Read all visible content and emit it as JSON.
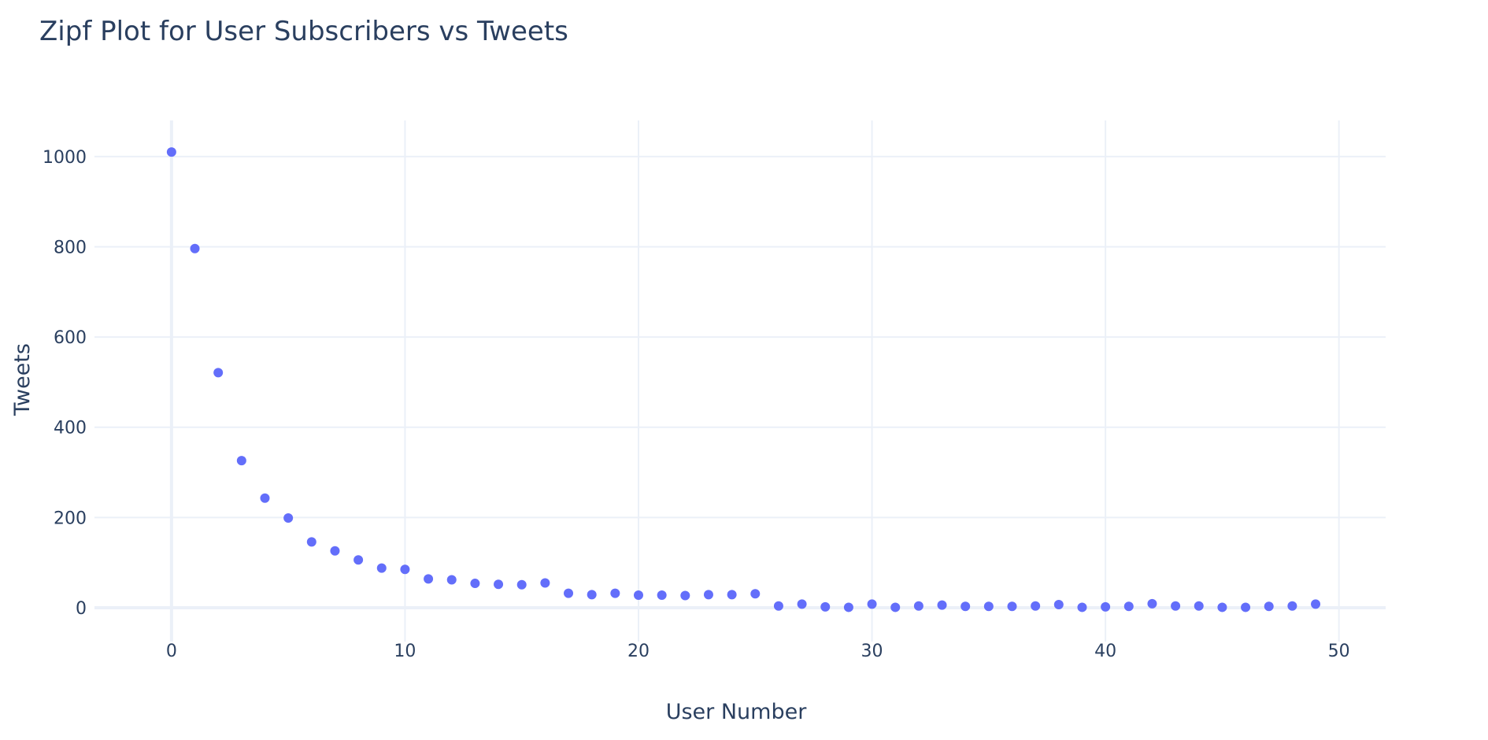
{
  "chart_data": {
    "type": "scatter",
    "title": "Zipf Plot for User Subscribers vs Tweets",
    "xlabel": "User Number",
    "ylabel": "Tweets",
    "xlim": [
      -3.3,
      52
    ],
    "ylim": [
      -75,
      1080
    ],
    "x_ticks": [
      0,
      10,
      20,
      30,
      40,
      50
    ],
    "y_ticks": [
      0,
      200,
      400,
      600,
      800,
      1000
    ],
    "grid": true,
    "marker_color": "#636efa",
    "x": [
      0,
      1,
      2,
      3,
      4,
      5,
      6,
      7,
      8,
      9,
      10,
      11,
      12,
      13,
      14,
      15,
      16,
      17,
      18,
      19,
      20,
      21,
      22,
      23,
      24,
      25,
      26,
      27,
      28,
      29,
      30,
      31,
      32,
      33,
      34,
      35,
      36,
      37,
      38,
      39,
      40,
      41,
      42,
      43,
      44,
      45,
      46,
      47,
      48,
      49
    ],
    "y": [
      1010,
      796,
      521,
      326,
      243,
      199,
      146,
      126,
      106,
      88,
      85,
      64,
      62,
      54,
      52,
      51,
      55,
      32,
      29,
      32,
      28,
      28,
      27,
      29,
      29,
      31,
      4,
      8,
      2,
      1,
      8,
      1,
      4,
      6,
      3,
      3,
      3,
      4,
      7,
      1,
      2,
      3,
      9,
      4,
      4,
      1,
      1,
      3,
      4,
      8
    ]
  }
}
